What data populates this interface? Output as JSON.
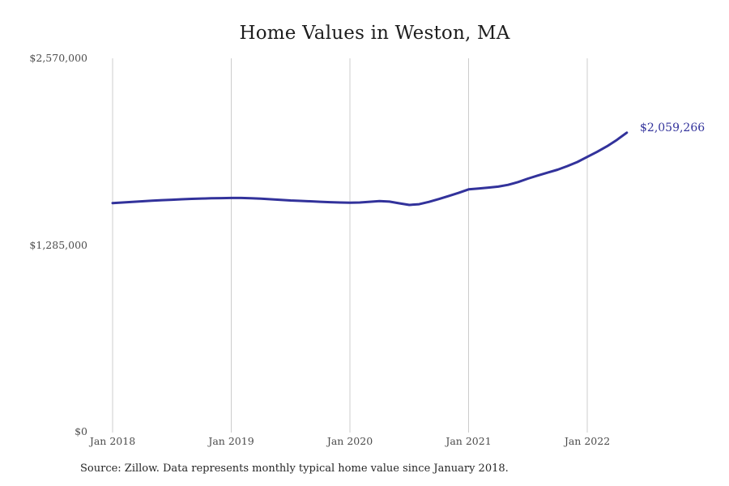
{
  "page": {
    "background_color": "#ffffff"
  },
  "chart_data": {
    "type": "line",
    "title": "Home Values in Weston, MA",
    "series_name": "Typical home value",
    "x": [
      "Jan 2018",
      "Feb 2018",
      "Mar 2018",
      "Apr 2018",
      "May 2018",
      "Jun 2018",
      "Jul 2018",
      "Aug 2018",
      "Sep 2018",
      "Oct 2018",
      "Nov 2018",
      "Dec 2018",
      "Jan 2019",
      "Feb 2019",
      "Mar 2019",
      "Apr 2019",
      "May 2019",
      "Jun 2019",
      "Jul 2019",
      "Aug 2019",
      "Sep 2019",
      "Oct 2019",
      "Nov 2019",
      "Dec 2019",
      "Jan 2020",
      "Feb 2020",
      "Mar 2020",
      "Apr 2020",
      "May 2020",
      "Jun 2020",
      "Jul 2020",
      "Aug 2020",
      "Sep 2020",
      "Oct 2020",
      "Nov 2020",
      "Dec 2020",
      "Jan 2021",
      "Feb 2021",
      "Mar 2021",
      "Apr 2021",
      "May 2021",
      "Jun 2021",
      "Jul 2021",
      "Aug 2021",
      "Sep 2021",
      "Oct 2021",
      "Nov 2021",
      "Dec 2021",
      "Jan 2022",
      "Feb 2022",
      "Mar 2022",
      "Apr 2022",
      "May 2022"
    ],
    "values": [
      1576000,
      1580000,
      1584000,
      1588000,
      1592000,
      1596000,
      1599000,
      1602000,
      1605000,
      1607000,
      1609000,
      1610000,
      1611000,
      1611000,
      1609000,
      1606000,
      1602000,
      1598000,
      1594000,
      1591000,
      1588000,
      1585000,
      1582000,
      1580000,
      1578000,
      1580000,
      1585000,
      1590000,
      1586000,
      1574000,
      1563000,
      1568000,
      1584000,
      1604000,
      1625000,
      1646000,
      1670000,
      1676000,
      1682000,
      1689000,
      1701000,
      1720000,
      1744000,
      1765000,
      1785000,
      1805000,
      1830000,
      1858000,
      1893000,
      1928000,
      1966000,
      2010000,
      2059266
    ],
    "last_value": 2059266,
    "last_value_label": "$2,059,266",
    "x_tick_labels": [
      "Jan 2018",
      "Jan 2019",
      "Jan 2020",
      "Jan 2021",
      "Jan 2022"
    ],
    "y_tick_labels": [
      "$2,570,000",
      "$1,285,000",
      "$0"
    ],
    "y_tick_values": [
      2570000,
      1285000,
      0
    ],
    "ylim": [
      0,
      2570000
    ],
    "grid": "vertical-only",
    "legend": "none",
    "line_color": "#32329b",
    "grid_color": "#cccccc",
    "source": "Source: Zillow. Data represents monthly typical home value since January 2018."
  }
}
